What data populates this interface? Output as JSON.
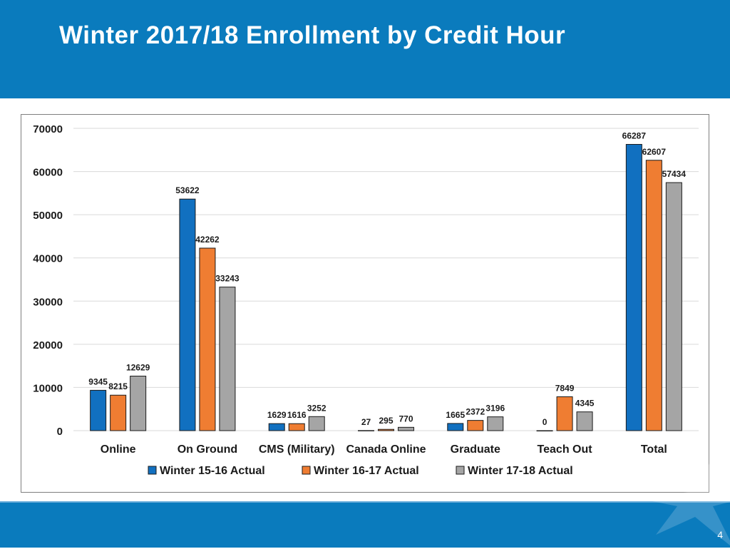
{
  "page": {
    "title": "Winter 2017/18 Enrollment by Credit Hour",
    "page_number": "4",
    "colors": {
      "header": "#0a7bbd",
      "footer": "#0a7bbd"
    }
  },
  "chart_data": {
    "type": "bar",
    "title": "",
    "xlabel": "",
    "ylabel": "",
    "ylim": [
      0,
      70000
    ],
    "yticks": [
      "0",
      "10000",
      "20000",
      "30000",
      "40000",
      "50000",
      "60000",
      "70000"
    ],
    "grid": true,
    "legend_position": "bottom",
    "categories": [
      "Online",
      "On Ground",
      "CMS (Military)",
      "Canada Online",
      "Graduate",
      "Teach Out",
      "Total"
    ],
    "series": [
      {
        "name": "Winter 15-16 Actual",
        "color": "#1170c0",
        "values": [
          9345,
          53622,
          1629,
          27,
          1665,
          0,
          66287
        ]
      },
      {
        "name": "Winter 16-17 Actual",
        "color": "#ef7d32",
        "values": [
          8215,
          42262,
          1616,
          295,
          2372,
          7849,
          62607
        ]
      },
      {
        "name": "Winter 17-18 Actual",
        "color": "#a5a5a5",
        "values": [
          12629,
          33243,
          3252,
          770,
          3196,
          4345,
          57434
        ]
      }
    ]
  }
}
